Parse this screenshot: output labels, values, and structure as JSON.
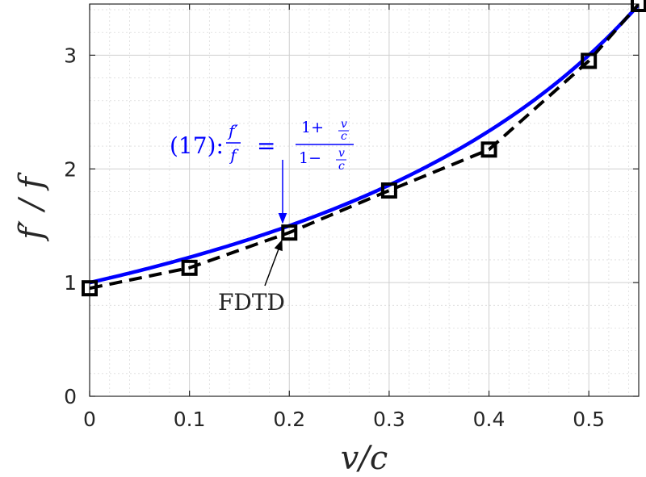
{
  "chart_data": {
    "type": "line",
    "xlabel": "v/c",
    "ylabel": "f′ / f",
    "xlim": [
      0,
      0.55
    ],
    "ylim": [
      0,
      3.45
    ],
    "xticks": [
      "0",
      "0.1",
      "0.2",
      "0.3",
      "0.4",
      "0.5"
    ],
    "yticks": [
      "0",
      "1",
      "2",
      "3"
    ],
    "grid": true,
    "minor_grid": true,
    "series": [
      {
        "name": "(17)",
        "kind": "analytic",
        "formula": "(1 + v/c) / (1 − v/c)",
        "color": "#0000ff",
        "style": "solid"
      },
      {
        "name": "FDTD",
        "kind": "measured",
        "color": "#000000",
        "style": "dashed",
        "marker": "square",
        "x": [
          0,
          0.1,
          0.2,
          0.3,
          0.4,
          0.5,
          0.55
        ],
        "y": [
          0.95,
          1.13,
          1.44,
          1.81,
          2.17,
          2.95,
          3.45
        ]
      }
    ],
    "annotations": [
      {
        "text_parts": [
          "(17):",
          "f′",
          "f",
          "=",
          "1+",
          "v",
          "c",
          "1−",
          "v",
          "c"
        ],
        "color": "#0000ff",
        "points_to": {
          "x": 0.2,
          "y": 1.5
        }
      },
      {
        "text": "FDTD",
        "color": "#262626",
        "points_to": {
          "x": 0.2,
          "y": 1.41
        }
      }
    ]
  }
}
